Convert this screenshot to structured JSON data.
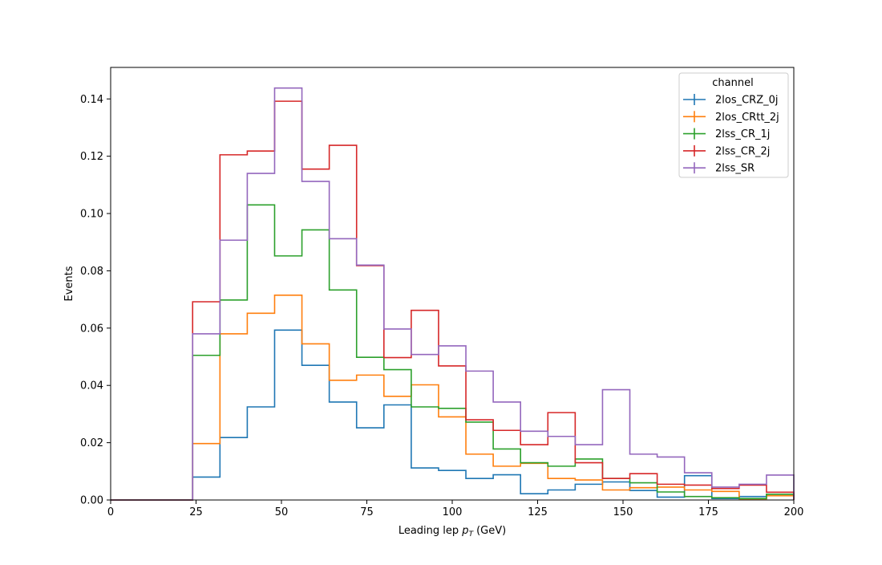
{
  "chart_data": {
    "type": "histogram-step",
    "xlabel": "Leading lep",
    "xlabel_symbol": "p",
    "xlabel_subscript": "T",
    "xlabel_unit": "(GeV)",
    "ylabel": "Events",
    "xlim": [
      0,
      200
    ],
    "ylim": [
      0,
      0.151
    ],
    "xticks": [
      0,
      25,
      50,
      75,
      100,
      125,
      150,
      175,
      200
    ],
    "xtick_labels": [
      "0",
      "25",
      "50",
      "75",
      "100",
      "125",
      "150",
      "175",
      "200"
    ],
    "yticks": [
      0,
      0.02,
      0.04,
      0.06,
      0.08,
      0.1,
      0.12,
      0.14
    ],
    "ytick_labels": [
      "0.00",
      "0.02",
      "0.04",
      "0.06",
      "0.08",
      "0.10",
      "0.12",
      "0.14"
    ],
    "grid": false,
    "legend": {
      "title": "channel",
      "placement": "top-right"
    },
    "bin_edges": [
      0,
      8,
      16,
      24,
      32,
      40,
      48,
      56,
      64,
      72,
      80,
      88,
      96,
      104,
      112,
      120,
      128,
      136,
      144,
      152,
      160,
      168,
      176,
      184,
      192,
      200
    ],
    "series": [
      {
        "name": "2los_CRZ_0j",
        "color": "#1f77b4",
        "values": [
          0,
          0,
          0,
          0.008,
          0.0218,
          0.0325,
          0.0593,
          0.047,
          0.0342,
          0.0252,
          0.0332,
          0.0112,
          0.0103,
          0.0075,
          0.0088,
          0.0022,
          0.0035,
          0.0055,
          0.0063,
          0.0033,
          0.001,
          0.0085,
          0.0005,
          0.0012,
          0.002
        ]
      },
      {
        "name": "2los_CRtt_2j",
        "color": "#ff7f0e",
        "values": [
          0,
          0,
          0,
          0.0197,
          0.058,
          0.0652,
          0.0715,
          0.0545,
          0.0418,
          0.0436,
          0.0362,
          0.0402,
          0.029,
          0.016,
          0.0118,
          0.0128,
          0.0075,
          0.007,
          0.0035,
          0.0043,
          0.0045,
          0.0035,
          0.003,
          0.0004,
          0.0015
        ]
      },
      {
        "name": "2lss_CR_1j",
        "color": "#2ca02c",
        "values": [
          0,
          0,
          0,
          0.0505,
          0.0698,
          0.103,
          0.0852,
          0.0943,
          0.0733,
          0.0498,
          0.0455,
          0.0325,
          0.032,
          0.0272,
          0.0178,
          0.013,
          0.0118,
          0.0143,
          0.0075,
          0.006,
          0.0028,
          0.0012,
          0.0008,
          0.0005,
          0.002
        ]
      },
      {
        "name": "2lss_CR_2j",
        "color": "#d62728",
        "values": [
          0,
          0,
          0,
          0.0692,
          0.1205,
          0.1218,
          0.1392,
          0.1155,
          0.1238,
          0.0818,
          0.0497,
          0.0662,
          0.0468,
          0.028,
          0.0243,
          0.0193,
          0.0305,
          0.013,
          0.0075,
          0.0092,
          0.0055,
          0.0052,
          0.004,
          0.0052,
          0.0027
        ]
      },
      {
        "name": "2lss_SR",
        "color": "#9467bd",
        "values": [
          0,
          0,
          0,
          0.058,
          0.0907,
          0.114,
          0.1438,
          0.1112,
          0.0912,
          0.082,
          0.0597,
          0.0508,
          0.0538,
          0.045,
          0.0342,
          0.024,
          0.0222,
          0.0193,
          0.0385,
          0.016,
          0.015,
          0.0095,
          0.0045,
          0.0055,
          0.0087
        ]
      }
    ]
  }
}
